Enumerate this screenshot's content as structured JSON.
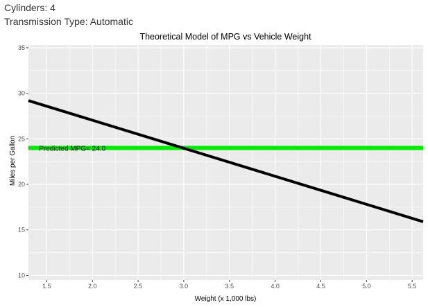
{
  "header": {
    "cylinders_label": "Cylinders: 4",
    "transmission_label": "Transmission Type: Automatic"
  },
  "chart_data": {
    "type": "line",
    "title": "Theoretical Model of MPG vs Vehicle Weight",
    "xlabel": "Weight (x 1,000 lbs)",
    "ylabel": "Miles per Gallon",
    "xlim": [
      1.3,
      5.62
    ],
    "ylim": [
      9.5,
      35.3
    ],
    "xticks": [
      1.5,
      2.0,
      2.5,
      3.0,
      3.5,
      4.0,
      4.5,
      5.0,
      5.5
    ],
    "xtick_labels": [
      "1.5",
      "2.0",
      "2.5",
      "3.0",
      "3.5",
      "4.0",
      "4.5",
      "5.0",
      "5.5"
    ],
    "yticks": [
      10,
      15,
      20,
      25,
      30,
      35
    ],
    "ytick_labels": [
      "10",
      "15",
      "20",
      "25",
      "30",
      "35"
    ],
    "grid": true,
    "series": [
      {
        "x": [
          1.3,
          5.62
        ],
        "y": [
          29.2,
          15.9
        ],
        "color": "#000000"
      }
    ],
    "reference_line": {
      "y": 24.0,
      "color": "#00ee00"
    },
    "annotation": {
      "text": "Predicted MPG= 24.0",
      "x": 1.78,
      "y": 24.0
    }
  }
}
